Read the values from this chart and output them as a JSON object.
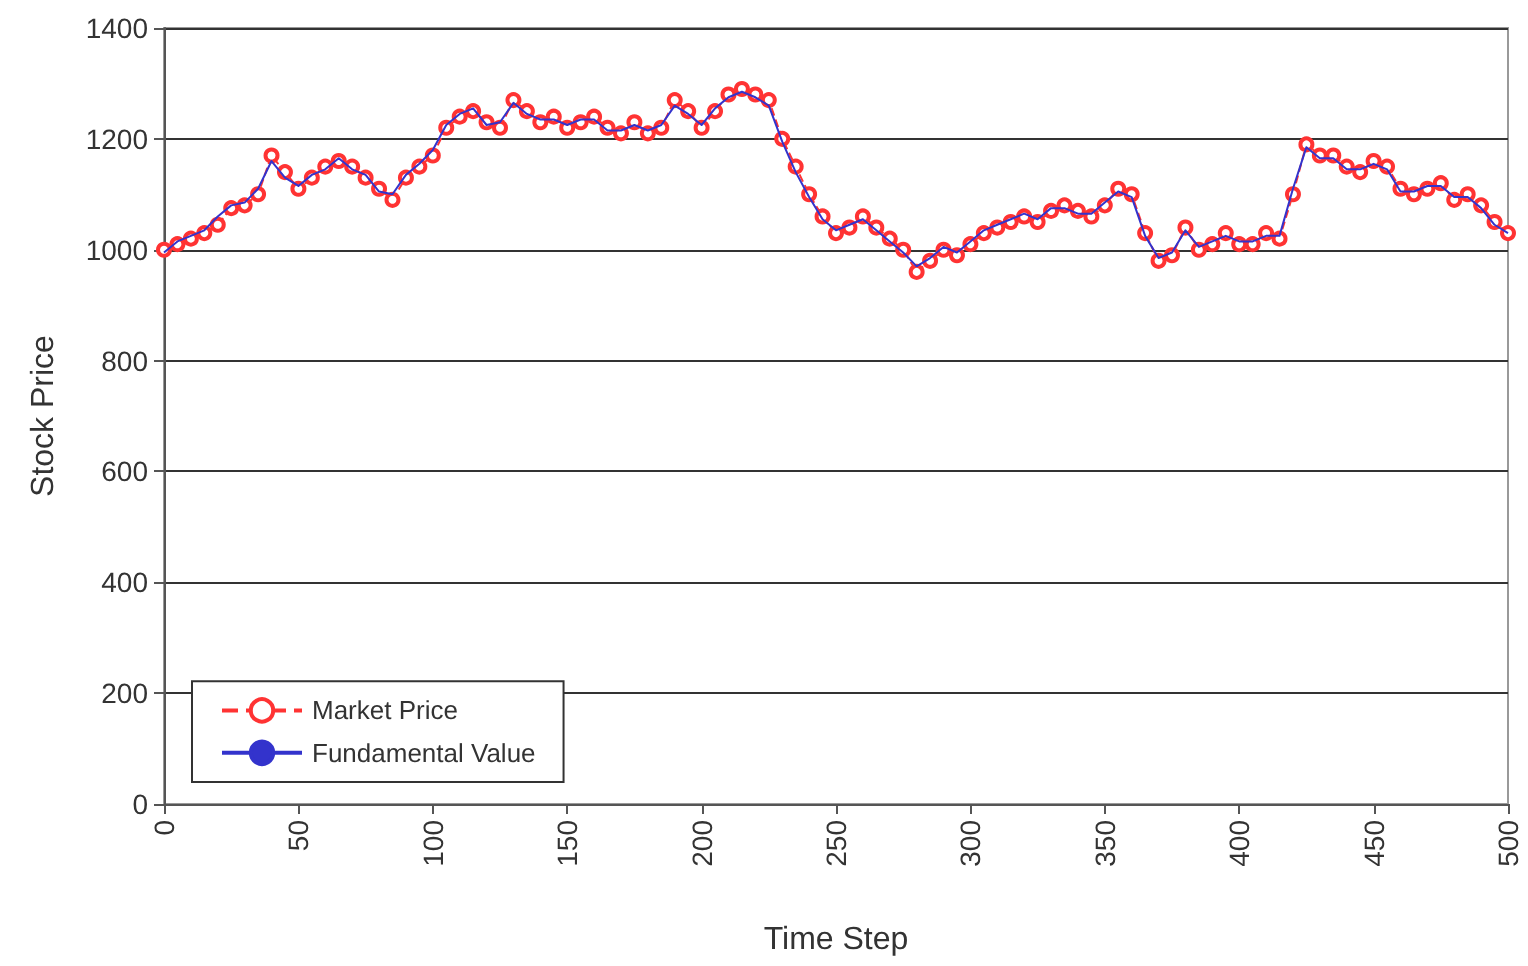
{
  "chart_data": {
    "type": "line",
    "xlabel": "Time Step",
    "ylabel": "Stock Price",
    "xlim": [
      0,
      500
    ],
    "xticks": [
      0,
      50,
      100,
      150,
      200,
      250,
      300,
      350,
      400,
      450,
      500
    ],
    "ylim": [
      0,
      1400
    ],
    "yticks": [
      0,
      200,
      400,
      600,
      800,
      1000,
      1200,
      1400
    ],
    "grid": "y",
    "legend": "bottom left",
    "x": [
      0,
      5,
      10,
      15,
      20,
      25,
      30,
      35,
      40,
      45,
      50,
      55,
      60,
      65,
      70,
      75,
      80,
      85,
      90,
      95,
      100,
      105,
      110,
      115,
      120,
      125,
      130,
      135,
      140,
      145,
      150,
      155,
      160,
      165,
      170,
      175,
      180,
      185,
      190,
      195,
      200,
      205,
      210,
      215,
      220,
      225,
      230,
      235,
      240,
      245,
      250,
      255,
      260,
      265,
      270,
      275,
      280,
      285,
      290,
      295,
      300,
      305,
      310,
      315,
      320,
      325,
      330,
      335,
      340,
      345,
      350,
      355,
      360,
      365,
      370,
      375,
      380,
      385,
      390,
      395,
      400,
      405,
      410,
      415,
      420,
      425,
      430,
      435,
      440,
      445,
      450,
      455,
      460,
      465,
      470,
      475,
      480,
      485,
      490,
      495,
      500
    ],
    "series": [
      {
        "name": "Market Price",
        "color": "#ff3333",
        "line_style": "dashed",
        "marker": "circle",
        "values": [
          1000,
          1010,
          1020,
          1030,
          1045,
          1075,
          1080,
          1100,
          1170,
          1140,
          1110,
          1130,
          1150,
          1160,
          1150,
          1130,
          1110,
          1090,
          1130,
          1150,
          1170,
          1220,
          1240,
          1250,
          1230,
          1220,
          1270,
          1250,
          1230,
          1240,
          1220,
          1230,
          1240,
          1220,
          1210,
          1230,
          1210,
          1220,
          1270,
          1250,
          1220,
          1250,
          1280,
          1290,
          1280,
          1270,
          1200,
          1150,
          1100,
          1060,
          1030,
          1040,
          1060,
          1040,
          1020,
          1000,
          960,
          980,
          1000,
          990,
          1010,
          1030,
          1040,
          1050,
          1060,
          1050,
          1070,
          1080,
          1070,
          1060,
          1080,
          1110,
          1100,
          1030,
          980,
          990,
          1040,
          1000,
          1010,
          1030,
          1010,
          1010,
          1030,
          1020,
          1100,
          1190,
          1170,
          1170,
          1150,
          1140,
          1160,
          1150,
          1110,
          1100,
          1110,
          1120,
          1090,
          1100,
          1080,
          1050,
          1030
        ]
      },
      {
        "name": "Fundamental Value",
        "color": "#3333cc",
        "line_style": "solid",
        "marker": "none",
        "values": [
          995,
          1015,
          1025,
          1035,
          1060,
          1080,
          1085,
          1110,
          1160,
          1130,
          1115,
          1135,
          1145,
          1165,
          1145,
          1135,
          1105,
          1100,
          1135,
          1155,
          1180,
          1225,
          1245,
          1255,
          1225,
          1230,
          1265,
          1245,
          1235,
          1235,
          1225,
          1235,
          1235,
          1215,
          1215,
          1225,
          1215,
          1225,
          1260,
          1245,
          1225,
          1255,
          1275,
          1285,
          1275,
          1260,
          1195,
          1140,
          1095,
          1055,
          1035,
          1045,
          1055,
          1035,
          1015,
          995,
          970,
          985,
          1005,
          995,
          1015,
          1035,
          1045,
          1055,
          1065,
          1055,
          1075,
          1075,
          1065,
          1065,
          1085,
          1105,
          1095,
          1025,
          985,
          995,
          1035,
          1005,
          1015,
          1025,
          1015,
          1015,
          1025,
          1025,
          1110,
          1185,
          1165,
          1165,
          1145,
          1145,
          1155,
          1145,
          1105,
          1105,
          1115,
          1115,
          1095,
          1095,
          1075,
          1045,
          1030
        ]
      }
    ]
  }
}
